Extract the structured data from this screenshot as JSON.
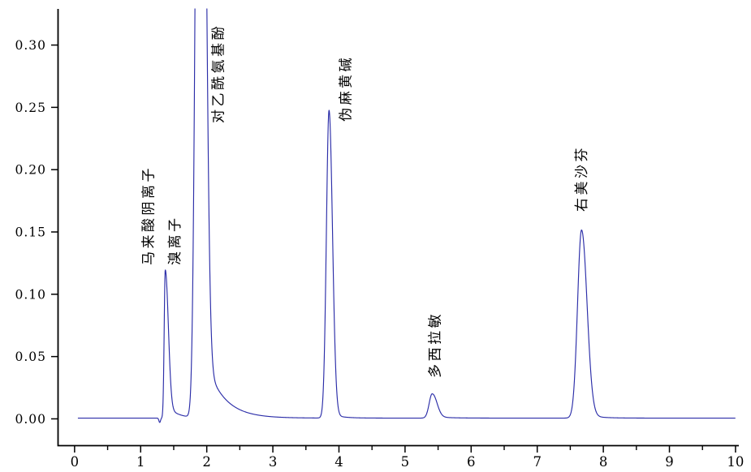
{
  "figure": {
    "background": "#ffffff",
    "description": "HPLC chromatogram with labeled analyte peaks"
  },
  "chart_data": {
    "type": "line",
    "title": "",
    "xlabel": "",
    "ylabel": "",
    "x_range": [
      -0.25,
      10.05
    ],
    "y_range": [
      -0.0215,
      0.329
    ],
    "x_ticks": [
      0,
      1,
      2,
      3,
      4,
      5,
      6,
      7,
      8,
      9,
      10
    ],
    "x_tick_labels": [
      "0",
      "1",
      "2",
      "3",
      "4",
      "5",
      "6",
      "7",
      "8",
      "9",
      "10"
    ],
    "x_minor_ticks": [
      0.5,
      1.5,
      2.5,
      3.5,
      4.5,
      5.5,
      6.5,
      7.5,
      8.5,
      9.5
    ],
    "y_ticks": [
      0.0,
      0.05,
      0.1,
      0.15,
      0.2,
      0.25,
      0.3
    ],
    "y_tick_labels": [
      "0.00",
      "0.05",
      "0.10",
      "0.15",
      "0.20",
      "0.25",
      "0.30"
    ],
    "grid": false,
    "legend": false,
    "line_color": "#2b2da8",
    "axis_color": "#000000",
    "label_color": "#000000",
    "baseline_value": 0.0006,
    "trace_range": [
      0.05,
      10.0
    ],
    "clip_top": 0.329,
    "peaks": [
      {
        "name": "baseline-dip-artifact",
        "label": "",
        "t": 1.288,
        "height": -0.0035,
        "sigma_left": 0.012,
        "sigma_right": 0.012,
        "tail_amp": 0,
        "tail_tau": 1
      },
      {
        "name": "maleate-anion",
        "label": "马来酸阴离子",
        "t": 1.372,
        "height": 0.119,
        "sigma_left": 0.016,
        "sigma_right": 0.045,
        "tail_amp": 0.012,
        "tail_tau": 0.15
      },
      {
        "name": "bromide-ion",
        "label": "溴离子",
        "t": 1.87,
        "height": 0.55,
        "sigma_left": 0.045,
        "sigma_right": 0.05,
        "tail_amp": 0,
        "tail_tau": 1
      },
      {
        "name": "paracetamol",
        "label": "对乙酰氨基酚",
        "t": 1.935,
        "height": 0.55,
        "sigma_left": 0.045,
        "sigma_right": 0.057,
        "tail_amp": 0.055,
        "tail_tau": 0.27
      },
      {
        "name": "pseudoephedrine",
        "label": "伪麻黄碱",
        "t": 3.85,
        "height": 0.247,
        "sigma_left": 0.04,
        "sigma_right": 0.052,
        "tail_amp": 0.004,
        "tail_tau": 0.15
      },
      {
        "name": "doxylamine",
        "label": "多西拉敏",
        "t": 5.41,
        "height": 0.0195,
        "sigma_left": 0.045,
        "sigma_right": 0.07,
        "tail_amp": 0.0015,
        "tail_tau": 0.2
      },
      {
        "name": "dextromethorphan",
        "label": "右美沙芬",
        "t": 7.67,
        "height": 0.151,
        "sigma_left": 0.06,
        "sigma_right": 0.082,
        "tail_amp": 0.004,
        "tail_tau": 0.18
      }
    ],
    "annotations": [
      {
        "text": "马来酸阴离子",
        "t": 1.114,
        "v_bottom": 0.1233
      },
      {
        "text": "溴离子",
        "t": 1.513,
        "v_bottom": 0.1233
      },
      {
        "text": "对乙酰氨基酚",
        "t": 2.17,
        "v_bottom": 0.2373
      },
      {
        "text": "伪麻黄碱",
        "t": 4.098,
        "v_bottom": 0.2386
      },
      {
        "text": "多西拉敏",
        "t": 5.449,
        "v_bottom": 0.0329
      },
      {
        "text": "右美沙芬",
        "t": 7.665,
        "v_bottom": 0.1663
      }
    ]
  }
}
